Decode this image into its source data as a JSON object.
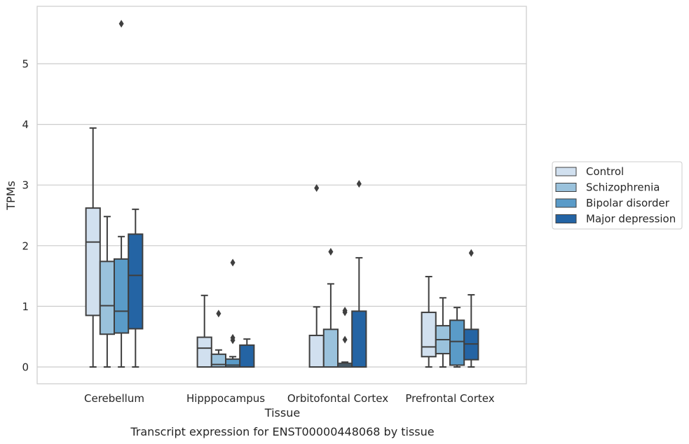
{
  "chart_data": {
    "type": "boxplot",
    "title": "",
    "caption": "Transcript expression for ENST00000448068 by tissue",
    "xlabel": "Tissue",
    "ylabel": "TPMs",
    "ylim": [
      -0.28,
      5.95
    ],
    "yticks": [
      0,
      1,
      2,
      3,
      4,
      5
    ],
    "grid": "horizontal",
    "legend_position": "right",
    "categories": [
      "Cerebellum",
      "Hipppocampus",
      "Orbitofontal Cortex",
      "Prefrontal Cortex"
    ],
    "series": [
      {
        "name": "Control",
        "color": "#d1e0ef",
        "boxes": [
          {
            "whislo": 0.0,
            "q1": 0.85,
            "med": 2.06,
            "q3": 2.62,
            "whishi": 3.94,
            "fliers": []
          },
          {
            "whislo": 0.0,
            "q1": 0.0,
            "med": 0.31,
            "q3": 0.49,
            "whishi": 1.18,
            "fliers": []
          },
          {
            "whislo": 0.0,
            "q1": 0.0,
            "med": 0.0,
            "q3": 0.52,
            "whishi": 0.99,
            "fliers": [
              2.95
            ]
          },
          {
            "whislo": 0.0,
            "q1": 0.17,
            "med": 0.33,
            "q3": 0.9,
            "whishi": 1.49,
            "fliers": []
          }
        ]
      },
      {
        "name": "Schizophrenia",
        "color": "#9ac2dc",
        "boxes": [
          {
            "whislo": 0.0,
            "q1": 0.54,
            "med": 1.01,
            "q3": 1.74,
            "whishi": 2.48,
            "fliers": []
          },
          {
            "whislo": 0.0,
            "q1": 0.0,
            "med": 0.04,
            "q3": 0.21,
            "whishi": 0.28,
            "fliers": [
              0.88
            ]
          },
          {
            "whislo": 0.0,
            "q1": 0.0,
            "med": 0.0,
            "q3": 0.62,
            "whishi": 1.37,
            "fliers": [
              1.9
            ]
          },
          {
            "whislo": 0.0,
            "q1": 0.22,
            "med": 0.45,
            "q3": 0.68,
            "whishi": 1.14,
            "fliers": []
          }
        ]
      },
      {
        "name": "Bipolar disorder",
        "color": "#5a9bc8",
        "boxes": [
          {
            "whislo": 0.0,
            "q1": 0.56,
            "med": 0.92,
            "q3": 1.78,
            "whishi": 2.15,
            "fliers": [
              5.66
            ]
          },
          {
            "whislo": 0.0,
            "q1": 0.0,
            "med": 0.03,
            "q3": 0.13,
            "whishi": 0.17,
            "fliers": [
              0.44,
              0.48,
              1.72
            ]
          },
          {
            "whislo": 0.0,
            "q1": 0.0,
            "med": 0.03,
            "q3": 0.06,
            "whishi": 0.08,
            "fliers": [
              0.45,
              0.9,
              0.93
            ]
          },
          {
            "whislo": 0.0,
            "q1": 0.03,
            "med": 0.42,
            "q3": 0.77,
            "whishi": 0.98,
            "fliers": []
          }
        ]
      },
      {
        "name": "Major depression",
        "color": "#2464a4",
        "boxes": [
          {
            "whislo": 0.0,
            "q1": 0.63,
            "med": 1.51,
            "q3": 2.19,
            "whishi": 2.6,
            "fliers": []
          },
          {
            "whislo": 0.0,
            "q1": 0.0,
            "med": 0.0,
            "q3": 0.36,
            "whishi": 0.46,
            "fliers": []
          },
          {
            "whislo": 0.0,
            "q1": 0.0,
            "med": 0.0,
            "q3": 0.92,
            "whishi": 1.8,
            "fliers": [
              3.02
            ]
          },
          {
            "whislo": 0.0,
            "q1": 0.12,
            "med": 0.38,
            "q3": 0.62,
            "whishi": 1.19,
            "fliers": [
              1.88
            ]
          }
        ]
      }
    ]
  }
}
